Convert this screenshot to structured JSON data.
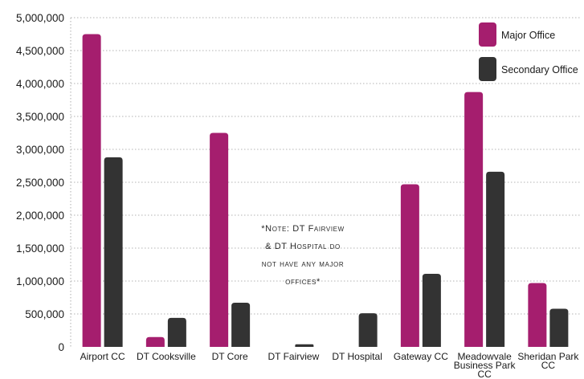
{
  "chart_data": {
    "type": "bar",
    "categories": [
      "Airport CC",
      "DT Cooksville",
      "DT Core",
      "DT Fairview",
      "DT Hospital",
      "Gateway CC",
      "Meadowvale Business Park CC",
      "Sheridan Park CC"
    ],
    "series": [
      {
        "name": "Major Office",
        "color": "#a51e6e",
        "values": [
          4750000,
          150000,
          3250000,
          0,
          0,
          2470000,
          3870000,
          970000
        ]
      },
      {
        "name": "Secondary Office",
        "color": "#333333",
        "values": [
          2880000,
          440000,
          670000,
          40000,
          510000,
          1110000,
          2660000,
          580000
        ]
      }
    ],
    "ylim": [
      0,
      5000000
    ],
    "yticks": [
      "0",
      "500,000",
      "1,000,000",
      "1,500,000",
      "2,000,000",
      "2,500,000",
      "3,000,000",
      "3,500,000",
      "4,000,000",
      "4,500,000",
      "5,000,000"
    ],
    "grid": "dashed horizontal",
    "legend": "top-right",
    "annotation": "*Note: DT Fairview & DT Hospital do not have any major offices*"
  }
}
